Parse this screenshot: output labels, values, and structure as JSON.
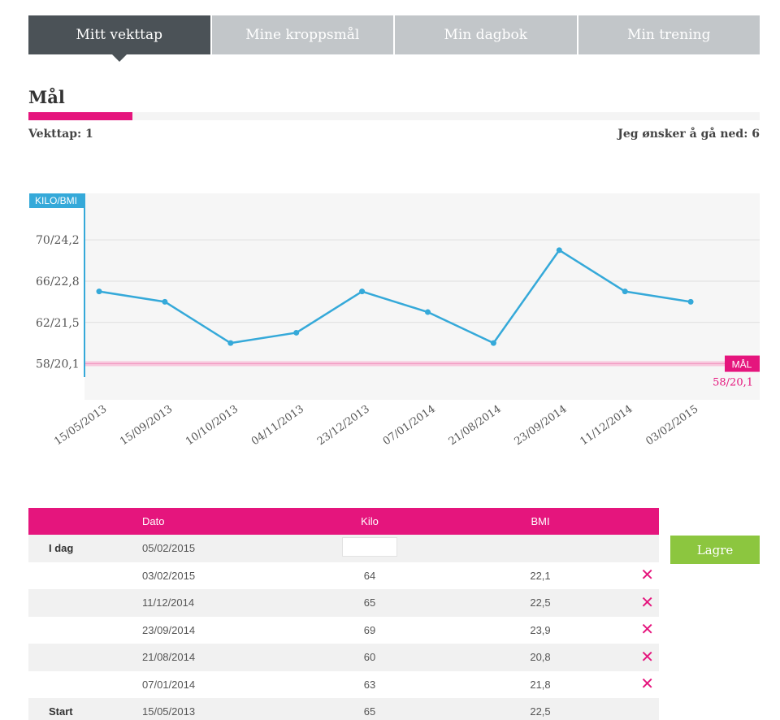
{
  "tabs": [
    {
      "label": "Mitt vekttap"
    },
    {
      "label": "Mine kroppsmål"
    },
    {
      "label": "Min dagbok"
    },
    {
      "label": "Min trening"
    }
  ],
  "goal": {
    "title": "Mål",
    "progress": 0.142,
    "loss_label": "Vekttap: 1",
    "target_label": "Jeg ønsker å gå ned: 6"
  },
  "colors": {
    "accent_pink": "#e5157d",
    "line_blue": "#35a9d9",
    "tab_active": "#4b5257",
    "tab_inactive": "#c2c6c9",
    "save_green": "#8cc63f"
  },
  "chart_data": {
    "type": "line",
    "ylabel": "KILO/BMI",
    "y_ticks": [
      {
        "value": 70,
        "label": "70/24,2"
      },
      {
        "value": 66,
        "label": "66/22,8"
      },
      {
        "value": 62,
        "label": "62/21,5"
      },
      {
        "value": 58,
        "label": "58/20,1"
      }
    ],
    "ylim": [
      54.5,
      74.5
    ],
    "categories": [
      "15/05/2013",
      "15/09/2013",
      "10/10/2013",
      "04/11/2013",
      "23/12/2013",
      "07/01/2014",
      "21/08/2014",
      "23/09/2014",
      "11/12/2014",
      "03/02/2015"
    ],
    "values": [
      65,
      64,
      60,
      61,
      65,
      63,
      60,
      69,
      65,
      64
    ],
    "goal_value": 58,
    "goal_tag": "MÅL",
    "goal_label": "58/20,1",
    "grid": true
  },
  "table": {
    "headers": {
      "label": "",
      "date": "Dato",
      "kilo": "Kilo",
      "bmi": "BMI"
    },
    "today": {
      "label": "I dag",
      "date": "05/02/2015",
      "kilo": "",
      "bmi": ""
    },
    "rows": [
      {
        "label": "",
        "date": "03/02/2015",
        "kilo": "64",
        "bmi": "22,1",
        "delete": "✕"
      },
      {
        "label": "",
        "date": "11/12/2014",
        "kilo": "65",
        "bmi": "22,5",
        "delete": "✕"
      },
      {
        "label": "",
        "date": "23/09/2014",
        "kilo": "69",
        "bmi": "23,9",
        "delete": "✕"
      },
      {
        "label": "",
        "date": "21/08/2014",
        "kilo": "60",
        "bmi": "20,8",
        "delete": "✕"
      },
      {
        "label": "",
        "date": "07/01/2014",
        "kilo": "63",
        "bmi": "21,8",
        "delete": "✕"
      },
      {
        "label": "Start",
        "date": "15/05/2013",
        "kilo": "65",
        "bmi": "22,5",
        "delete": ""
      }
    ]
  },
  "save_button": {
    "label": "Lagre"
  }
}
